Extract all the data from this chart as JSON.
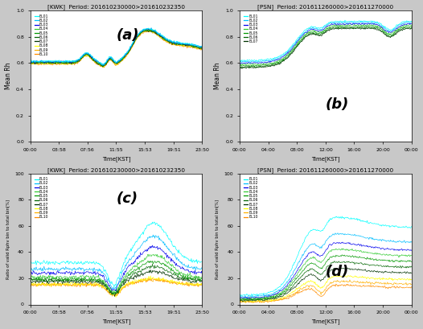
{
  "title_a": "[KWK]  Period: 201610230000>201610232350",
  "title_b": "[PSN]  Period: 201611260000>201611270000",
  "title_c": "[KWK]  Period: 201610230000>201610232350",
  "title_d": "[PSN]  Period: 201611260000>201611270000",
  "label_a": "(a)",
  "label_b": "(b)",
  "label_c": "(c)",
  "label_d": "(d)",
  "ylabel_ab": "Mean Rh",
  "ylabel_cd": "Ratio of valid Rphv bin to total bin[%]",
  "xlabel": "Time[KST]",
  "ylim_ab": [
    0.0,
    1.0
  ],
  "ylim_cd": [
    0,
    100
  ],
  "xticks_a": [
    "00:00",
    "03:58",
    "07:56",
    "11:55",
    "15:53",
    "19:51",
    "23:50"
  ],
  "xticks_b": [
    "00:00",
    "04:00",
    "08:00",
    "12:00",
    "16:00",
    "20:00",
    "00:00"
  ],
  "el_labels_10": [
    "EL01",
    "EL02",
    "EL03",
    "EL04",
    "EL05",
    "EL06",
    "EL07",
    "EL08",
    "EL09",
    "EL10"
  ],
  "el_labels_7": [
    "EL01",
    "EL02",
    "EL03",
    "EL04",
    "EL05",
    "EL06",
    "EL07"
  ],
  "el_colors_10": [
    "#00FFFF",
    "#00BFFF",
    "#0000EE",
    "#33CC33",
    "#009900",
    "#006600",
    "#003300",
    "#FFFF00",
    "#FFB000",
    "#FF8C00"
  ],
  "bg_color": "#c8c8c8",
  "plot_bg": "#ffffff",
  "n_points": 288
}
